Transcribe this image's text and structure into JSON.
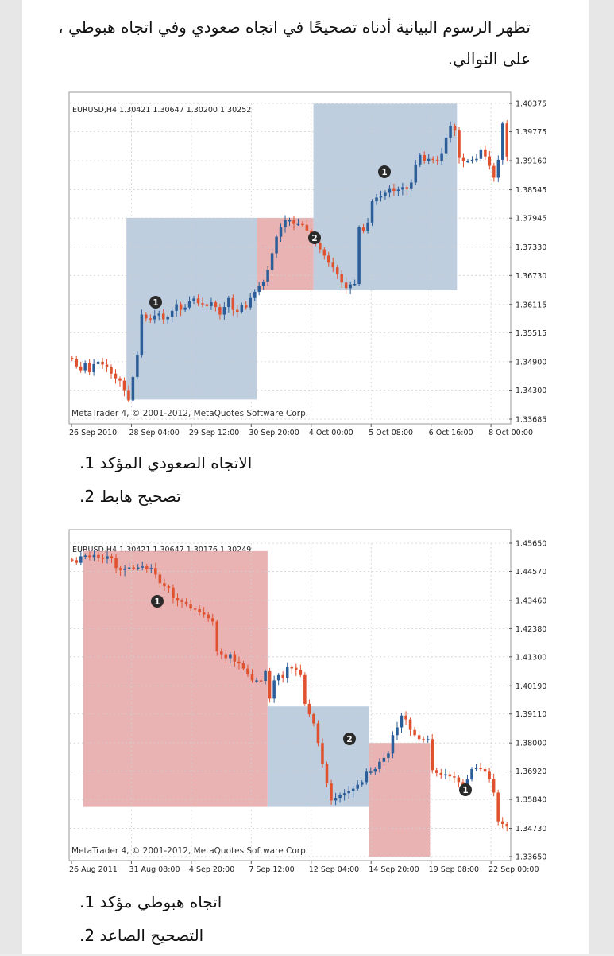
{
  "intro_text": "تظهر الرسوم البيانية أدناه تصحيحًا في اتجاه صعودي وفي اتجاه هبوطي ، على التوالي.",
  "list1": [
    {
      "num": "1.",
      "text": "الاتجاه الصعودي المؤكد"
    },
    {
      "num": "2.",
      "text": "تصحيح هابط"
    }
  ],
  "list2": [
    {
      "num": "1.",
      "text": "اتجاه هبوطي مؤكد"
    },
    {
      "num": "2.",
      "text": "التصحيح الصاعد"
    }
  ],
  "colors": {
    "bull": "#2b5d99",
    "bear": "#e0522f",
    "zone_blue": "#b3c6d9",
    "zone_red": "#e6a6a6",
    "grid": "#cfcfcf"
  },
  "chart_data": [
    {
      "type": "candlestick",
      "header": "EURUSD,H4  1.30421 1.30647 1.30200 1.30252",
      "footer": "MetaTrader 4, © 2001-2012, MetaQuotes Software Corp.",
      "x_ticks": [
        "26 Sep 2010",
        "28 Sep 04:00",
        "29 Sep 12:00",
        "30 Sep 20:00",
        "4 Oct 00:00",
        "5 Oct 08:00",
        "6 Oct 16:00",
        "8 Oct 00:00"
      ],
      "y_ticks": [
        "1.40375",
        "1.39775",
        "1.39160",
        "1.38545",
        "1.37945",
        "1.37330",
        "1.36730",
        "1.36115",
        "1.35515",
        "1.34900",
        "1.34300",
        "1.33685"
      ],
      "ylim": [
        1.33685,
        1.40375
      ],
      "candle_count": 101,
      "grid": true,
      "zones": [
        {
          "color": "blue",
          "label": "1",
          "start_index": 13,
          "end_index": 43,
          "top": 1.3795,
          "bottom": 1.341
        },
        {
          "color": "red",
          "label": "2",
          "start_index": 43,
          "end_index": 56,
          "top": 1.3795,
          "bottom": 1.3642
        },
        {
          "color": "blue",
          "label": "1",
          "start_index": 56,
          "end_index": 89,
          "top": 1.4037,
          "bottom": 1.3642
        }
      ],
      "closes": [
        1.3495,
        1.348,
        1.3472,
        1.3488,
        1.3468,
        1.3485,
        1.349,
        1.3484,
        1.3478,
        1.3465,
        1.3455,
        1.345,
        1.343,
        1.3408,
        1.3458,
        1.3505,
        1.359,
        1.3582,
        1.358,
        1.3588,
        1.3592,
        1.358,
        1.3585,
        1.3598,
        1.3612,
        1.36,
        1.3605,
        1.3618,
        1.3624,
        1.3614,
        1.3612,
        1.3608,
        1.3616,
        1.3606,
        1.359,
        1.3606,
        1.3625,
        1.36,
        1.3596,
        1.361,
        1.3605,
        1.3625,
        1.3638,
        1.365,
        1.366,
        1.3685,
        1.372,
        1.3755,
        1.3775,
        1.379,
        1.379,
        1.3782,
        1.3782,
        1.378,
        1.3768,
        1.3755,
        1.3742,
        1.3728,
        1.3715,
        1.37,
        1.369,
        1.3676,
        1.3658,
        1.3646,
        1.3654,
        1.3655,
        1.3775,
        1.3768,
        1.3785,
        1.383,
        1.3838,
        1.3842,
        1.3848,
        1.3856,
        1.3852,
        1.3855,
        1.386,
        1.3856,
        1.387,
        1.3908,
        1.3928,
        1.3916,
        1.392,
        1.3918,
        1.3916,
        1.3932,
        1.3965,
        1.399,
        1.398,
        1.3922,
        1.3915,
        1.3915,
        1.3918,
        1.392,
        1.394,
        1.3925,
        1.3905,
        1.388,
        1.3918,
        1.3995,
        1.3925
      ]
    },
    {
      "type": "candlestick",
      "header": "EURUSD,H4  1.30421 1.30647 1.30176 1.30249",
      "footer": "MetaTrader 4, © 2001-2012, MetaQuotes Software Corp.",
      "x_ticks": [
        "26 Aug 2011",
        "31 Aug 08:00",
        "4 Sep 20:00",
        "7 Sep 12:00",
        "12 Sep 04:00",
        "14 Sep 20:00",
        "19 Sep 08:00",
        "22 Sep 00:00"
      ],
      "y_ticks": [
        "1.45650",
        "1.44570",
        "1.43460",
        "1.42380",
        "1.41300",
        "1.40190",
        "1.39110",
        "1.38000",
        "1.36920",
        "1.35840",
        "1.34730",
        "1.33650"
      ],
      "ylim": [
        1.3365,
        1.4565
      ],
      "candle_count": 100,
      "grid": true,
      "zones": [
        {
          "color": "red",
          "label": "1",
          "start_index": 3,
          "end_index": 45,
          "top": 1.4535,
          "bottom": 1.3555
        },
        {
          "color": "blue",
          "label": "2",
          "start_index": 45,
          "end_index": 68,
          "top": 1.394,
          "bottom": 1.3555
        },
        {
          "color": "red",
          "label": "1",
          "start_index": 68,
          "end_index": 82,
          "top": 1.38,
          "bottom": 1.3365
        }
      ],
      "closes": [
        1.45,
        1.449,
        1.4515,
        1.4518,
        1.4512,
        1.452,
        1.451,
        1.4505,
        1.4515,
        1.4508,
        1.447,
        1.4462,
        1.4468,
        1.4472,
        1.447,
        1.4472,
        1.4476,
        1.4465,
        1.447,
        1.4445,
        1.4412,
        1.44,
        1.4395,
        1.4355,
        1.4345,
        1.434,
        1.433,
        1.4315,
        1.4312,
        1.43,
        1.4292,
        1.4278,
        1.4265,
        1.415,
        1.414,
        1.4125,
        1.414,
        1.4112,
        1.4105,
        1.4085,
        1.4062,
        1.404,
        1.404,
        1.4038,
        1.4075,
        1.397,
        1.404,
        1.406,
        1.405,
        1.409,
        1.4088,
        1.408,
        1.406,
        1.395,
        1.391,
        1.3875,
        1.38,
        1.372,
        1.3645,
        1.358,
        1.359,
        1.36,
        1.3608,
        1.3615,
        1.3625,
        1.364,
        1.365,
        1.369,
        1.369,
        1.37,
        1.3728,
        1.3743,
        1.376,
        1.383,
        1.386,
        1.3905,
        1.389,
        1.385,
        1.383,
        1.3815,
        1.3812,
        1.3815,
        1.3696,
        1.3685,
        1.3678,
        1.368,
        1.3672,
        1.3668,
        1.365,
        1.3638,
        1.366,
        1.37,
        1.3705,
        1.37,
        1.369,
        1.3662,
        1.361,
        1.35,
        1.349,
        1.348
      ]
    }
  ]
}
